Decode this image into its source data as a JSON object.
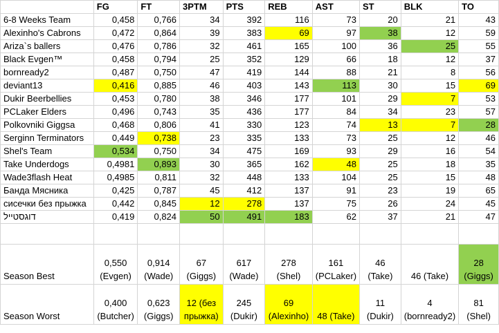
{
  "columns": [
    "FG",
    "FT",
    "3PTM",
    "PTS",
    "REB",
    "AST",
    "ST",
    "BLK",
    "TO"
  ],
  "colors": {
    "yellow": "#ffff00",
    "green": "#92d050",
    "grid": "#d4d4d4"
  },
  "rows": [
    {
      "team": "6-8 Weeks Team",
      "vals": [
        "0,458",
        "0,766",
        "34",
        "392",
        "116",
        "73",
        "20",
        "21",
        "43"
      ],
      "hl": [
        "",
        "",
        "",
        "",
        "",
        "",
        "",
        "",
        ""
      ]
    },
    {
      "team": "Alexinho's Cabrons",
      "vals": [
        "0,472",
        "0,864",
        "39",
        "383",
        "69",
        "97",
        "38",
        "12",
        "59"
      ],
      "hl": [
        "",
        "",
        "",
        "",
        "y",
        "",
        "g",
        "",
        ""
      ]
    },
    {
      "team": "Ariza`s ballers",
      "vals": [
        "0,476",
        "0,786",
        "32",
        "461",
        "165",
        "100",
        "36",
        "25",
        "55"
      ],
      "hl": [
        "",
        "",
        "",
        "",
        "",
        "",
        "",
        "g",
        ""
      ]
    },
    {
      "team": "Black Evgen™",
      "vals": [
        "0,458",
        "0,794",
        "25",
        "352",
        "129",
        "66",
        "18",
        "12",
        "37"
      ],
      "hl": [
        "",
        "",
        "",
        "",
        "",
        "",
        "",
        "",
        ""
      ]
    },
    {
      "team": "bornready2",
      "vals": [
        "0,487",
        "0,750",
        "47",
        "419",
        "144",
        "88",
        "21",
        "8",
        "56"
      ],
      "hl": [
        "",
        "",
        "",
        "",
        "",
        "",
        "",
        "",
        ""
      ]
    },
    {
      "team": "deviant13",
      "vals": [
        "0,416",
        "0,885",
        "46",
        "403",
        "143",
        "113",
        "30",
        "15",
        "69"
      ],
      "hl": [
        "y",
        "",
        "",
        "",
        "",
        "g",
        "",
        "",
        "y"
      ]
    },
    {
      "team": "Dukir Beerbellies",
      "vals": [
        "0,453",
        "0,780",
        "38",
        "346",
        "177",
        "101",
        "29",
        "7",
        "53"
      ],
      "hl": [
        "",
        "",
        "",
        "",
        "",
        "",
        "",
        "y",
        ""
      ]
    },
    {
      "team": "PCLaker Elders",
      "vals": [
        "0,496",
        "0,743",
        "35",
        "436",
        "177",
        "84",
        "34",
        "23",
        "57"
      ],
      "hl": [
        "",
        "",
        "",
        "",
        "",
        "",
        "",
        "",
        ""
      ]
    },
    {
      "team": "Polkovniki Giggsa",
      "vals": [
        "0,468",
        "0,806",
        "41",
        "330",
        "123",
        "74",
        "13",
        "7",
        "28"
      ],
      "hl": [
        "",
        "",
        "",
        "",
        "",
        "",
        "y",
        "y",
        "g"
      ]
    },
    {
      "team": "Serginn Terminators",
      "vals": [
        "0,449",
        "0,738",
        "23",
        "335",
        "133",
        "73",
        "25",
        "12",
        "46"
      ],
      "hl": [
        "",
        "y",
        "",
        "",
        "",
        "",
        "",
        "",
        ""
      ]
    },
    {
      "team": "Shel's Team",
      "vals": [
        "0,534",
        "0,750",
        "34",
        "475",
        "169",
        "93",
        "29",
        "16",
        "54"
      ],
      "hl": [
        "g",
        "",
        "",
        "",
        "",
        "",
        "",
        "",
        ""
      ]
    },
    {
      "team": "Take Underdogs",
      "vals": [
        "0,4981",
        "0,893",
        "30",
        "365",
        "162",
        "48",
        "25",
        "18",
        "35"
      ],
      "hl": [
        "",
        "g",
        "",
        "",
        "",
        "y",
        "",
        "",
        ""
      ]
    },
    {
      "team": "Wade3flash Heat",
      "vals": [
        "0,4985",
        "0,811",
        "32",
        "448",
        "133",
        "104",
        "25",
        "15",
        "48"
      ],
      "hl": [
        "",
        "",
        "",
        "",
        "",
        "",
        "",
        "",
        ""
      ]
    },
    {
      "team": "Банда Мясника",
      "vals": [
        "0,425",
        "0,787",
        "45",
        "412",
        "137",
        "91",
        "23",
        "19",
        "65"
      ],
      "hl": [
        "",
        "",
        "",
        "",
        "",
        "",
        "",
        "",
        ""
      ]
    },
    {
      "team": "сисечки без прыжка",
      "vals": [
        "0,442",
        "0,845",
        "12",
        "278",
        "137",
        "75",
        "26",
        "24",
        "45"
      ],
      "hl": [
        "",
        "",
        "y",
        "y",
        "",
        "",
        "",
        "",
        ""
      ]
    },
    {
      "team": "דוגסטייל",
      "vals": [
        "0,419",
        "0,824",
        "50",
        "491",
        "183",
        "62",
        "37",
        "21",
        "47"
      ],
      "hl": [
        "",
        "",
        "g",
        "g",
        "g",
        "",
        "",
        "",
        ""
      ],
      "rtl": true
    }
  ],
  "season_best": {
    "label": "Season Best",
    "cells": [
      "0,550 (Evgen)",
      "0,914 (Wade)",
      "67 (Giggs)",
      "617 (Wade)",
      "278 (Shel)",
      "161 (PCLaker)",
      "46 (Take)",
      "46 (Take)",
      "28 (Giggs)"
    ],
    "hl": [
      "",
      "",
      "",
      "",
      "",
      "",
      "",
      "",
      "g"
    ]
  },
  "season_worst": {
    "label": "Season Worst",
    "cells": [
      "0,400 (Butcher)",
      "0,623 (Giggs)",
      "12 (без прыжка)",
      "245 (Dukir)",
      "69 (Alexinho)",
      "48 (Take)",
      "11 (Dukir)",
      "4 (bornready2)",
      "81 (Shel)"
    ],
    "hl": [
      "",
      "",
      "y",
      "",
      "y",
      "y",
      "",
      "",
      ""
    ]
  }
}
